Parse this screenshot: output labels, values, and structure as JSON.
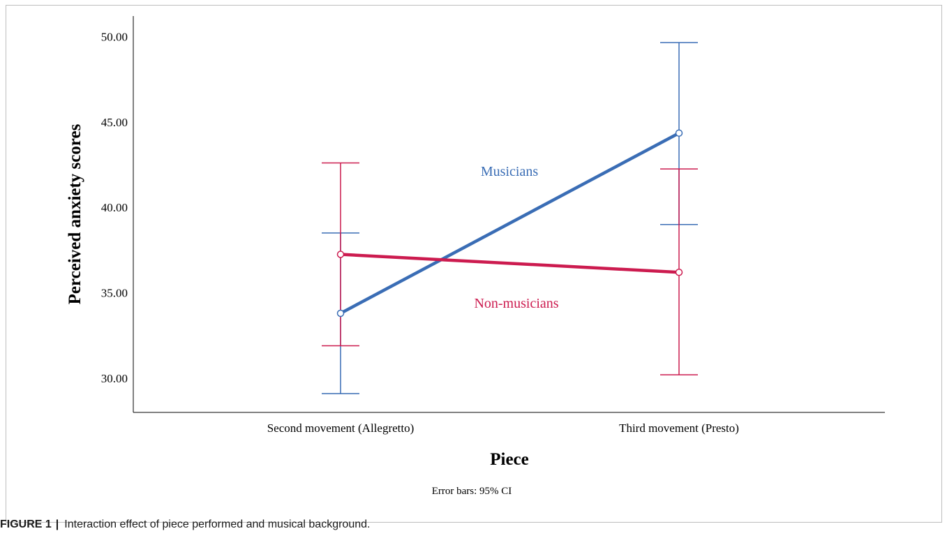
{
  "chart_data": {
    "type": "line",
    "categories": [
      "Second movement (Allegretto)",
      "Third movement (Presto)"
    ],
    "series": [
      {
        "name": "Musicians",
        "color": "#3a6db5",
        "values": [
          33.8,
          44.35
        ],
        "ci_low": [
          29.1,
          39.0
        ],
        "ci_high": [
          38.5,
          49.65
        ]
      },
      {
        "name": "Non-musicians",
        "color": "#cc1b4f",
        "values": [
          37.25,
          36.2
        ],
        "ci_low": [
          31.9,
          30.2
        ],
        "ci_high": [
          42.6,
          42.25
        ]
      }
    ],
    "yticks": [
      "50.00",
      "45.00",
      "40.00",
      "35.00",
      "30.00"
    ],
    "ylim": [
      28.0,
      51.2
    ],
    "ylabel": "Perceived anxiety scores",
    "xlabel": "Piece",
    "note": "Error bars: 95% CI"
  },
  "caption": {
    "label": "FIGURE 1",
    "separator": "|",
    "text": "Interaction effect of piece performed and musical background."
  }
}
